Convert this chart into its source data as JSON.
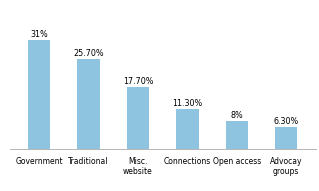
{
  "categories": [
    "Government",
    "Traditional",
    "Misc.\nwebsite",
    "Connections",
    "Open access",
    "Advocay\ngroups"
  ],
  "values": [
    31,
    25.7,
    17.7,
    11.3,
    8,
    6.3
  ],
  "labels": [
    "31%",
    "25.70%",
    "17.70%",
    "11.30%",
    "8%",
    "6.30%"
  ],
  "bar_color": "#8ec4e0",
  "ylim": [
    0,
    36
  ],
  "yticks": [
    0,
    5,
    10,
    15,
    20,
    25,
    30,
    35
  ],
  "background_color": "#ffffff",
  "grid_color": "#d0d0d0",
  "label_fontsize": 5.8,
  "tick_fontsize": 5.5,
  "bar_width": 0.45
}
